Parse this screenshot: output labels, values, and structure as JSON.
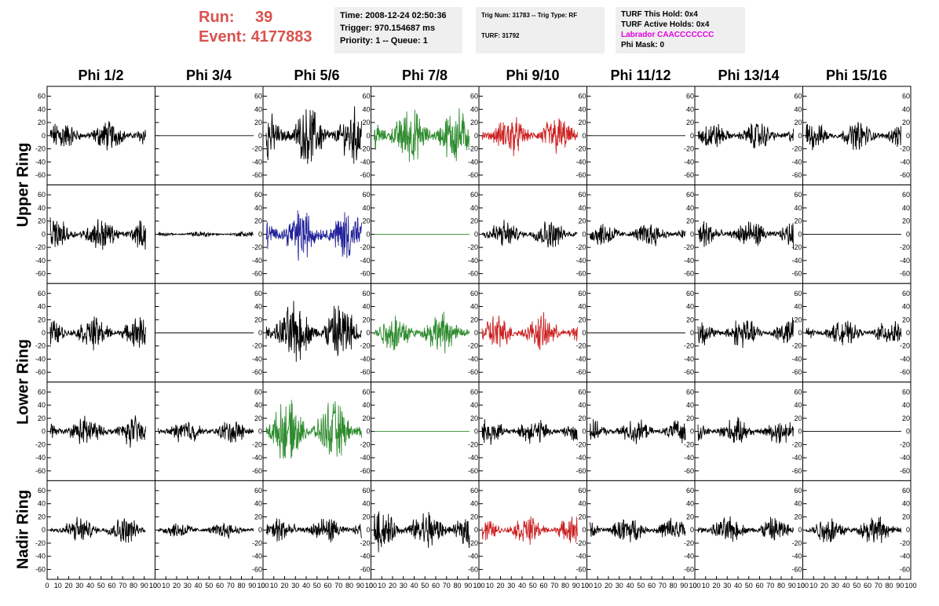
{
  "run": {
    "run_label": "Run:",
    "run_value": "39",
    "event_label": "Event:",
    "event_value": "4177883"
  },
  "info": {
    "time": "Time: 2008-12-24 02:50:36",
    "trigger": "Trigger: 970.154687 ms",
    "priority": "Priority: 1 -- Queue: 1",
    "trig": "Trig Num: 31783 -- Trig Type: RF",
    "turf": "TURF: 31792",
    "hold": "TURF This Hold: 0x4",
    "active": "TURF Active Holds: 0x4",
    "labrador": "Labrador CAACCCCCCC",
    "phimask": "Phi Mask: 0"
  },
  "chart_data": {
    "type": "line",
    "columns": [
      "Phi 1/2",
      "Phi 3/4",
      "Phi 5/6",
      "Phi 7/8",
      "Phi 9/10",
      "Phi 11/12",
      "Phi 13/14",
      "Phi 15/16"
    ],
    "rings": [
      "Upper Ring",
      "Lower Ring",
      "Nadir Ring"
    ],
    "ylim": [
      -75,
      75
    ],
    "xlim": [
      0,
      100
    ],
    "y_ticks": [
      -60,
      -40,
      -20,
      0,
      20,
      40,
      60
    ],
    "x_ticks": [
      0,
      10,
      20,
      30,
      40,
      50,
      60,
      70,
      80,
      90,
      100
    ],
    "x_tick_labels": [
      "0",
      "10",
      "20",
      "30",
      "40",
      "50",
      "60",
      "70",
      "80",
      "90",
      "100"
    ],
    "y_tick_labels": [
      "-60",
      "-40",
      "-20",
      "0",
      "20",
      "40",
      "60"
    ],
    "colors": {
      "black": "#000000",
      "green": "#2e8b2e",
      "red": "#cc2222",
      "blue": "#22229a"
    },
    "panels": [
      [
        {
          "c": "black",
          "a": 15
        },
        {
          "c": "black",
          "a": 0
        },
        {
          "c": "black",
          "a": 28
        },
        {
          "c": "green",
          "a": 28
        },
        {
          "c": "red",
          "a": 20
        },
        {
          "c": "black",
          "a": 0
        },
        {
          "c": "black",
          "a": 14
        },
        {
          "c": "black",
          "a": 14
        }
      ],
      [
        {
          "c": "black",
          "a": 16
        },
        {
          "c": "black",
          "a": 3
        },
        {
          "c": "blue",
          "a": 26
        },
        {
          "c": "green",
          "a": 0
        },
        {
          "c": "black",
          "a": 14
        },
        {
          "c": "black",
          "a": 12
        },
        {
          "c": "black",
          "a": 14
        },
        {
          "c": "black",
          "a": 0
        }
      ],
      [
        {
          "c": "black",
          "a": 16
        },
        {
          "c": "black",
          "a": 0
        },
        {
          "c": "black",
          "a": 30
        },
        {
          "c": "green",
          "a": 20
        },
        {
          "c": "red",
          "a": 18
        },
        {
          "c": "black",
          "a": 0
        },
        {
          "c": "black",
          "a": 15
        },
        {
          "c": "black",
          "a": 12
        }
      ],
      [
        {
          "c": "black",
          "a": 15
        },
        {
          "c": "black",
          "a": 12
        },
        {
          "c": "green",
          "a": 30
        },
        {
          "c": "green",
          "a": 0
        },
        {
          "c": "black",
          "a": 13
        },
        {
          "c": "black",
          "a": 12
        },
        {
          "c": "black",
          "a": 13
        },
        {
          "c": "black",
          "a": 0
        }
      ],
      [
        {
          "c": "black",
          "a": 13
        },
        {
          "c": "black",
          "a": 8
        },
        {
          "c": "black",
          "a": 13
        },
        {
          "c": "black",
          "a": 20
        },
        {
          "c": "red",
          "a": 14
        },
        {
          "c": "black",
          "a": 13
        },
        {
          "c": "black",
          "a": 13
        },
        {
          "c": "black",
          "a": 14
        }
      ]
    ]
  }
}
